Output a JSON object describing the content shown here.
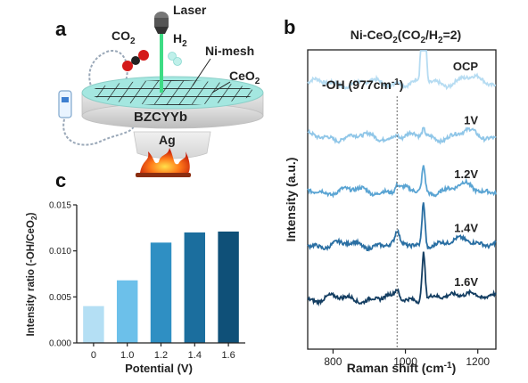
{
  "panels": {
    "a": {
      "letter": "a",
      "labels": {
        "laser": "Laser",
        "co2": "CO",
        "co2_sub": "2",
        "h2": "H",
        "h2_sub": "2",
        "ni_mesh": "Ni-mesh",
        "ceo2": "CeO",
        "ceo2_sub": "2",
        "disk": "BZCYYb",
        "ag": "Ag"
      },
      "colors": {
        "laser_beam": "#3ddc84",
        "disk_top": "#9ee7e0",
        "mesh": "#1a1a1a",
        "flame": "#e03a10"
      },
      "icons": [
        "laser-head-icon",
        "co2-molecule-icon",
        "h2-molecule-icon",
        "flame-icon",
        "wire-icon",
        "device-icon"
      ]
    },
    "b": {
      "letter": "b",
      "title": "Ni-CeO",
      "title_sub": "2",
      "title_rest": "(CO",
      "title_sub2": "2",
      "title_tail": "/H",
      "title_sub3": "2",
      "title_end": "=2)",
      "annotation": "-OH (977cm",
      "annotation_sup": "-1",
      "annotation_end": ")",
      "annotation_x": 977
    },
    "c": {
      "letter": "c"
    }
  },
  "chart_data": [
    {
      "type": "bar",
      "panel": "c",
      "categories": [
        "0",
        "1.0",
        "1.2",
        "1.4",
        "1.6"
      ],
      "values": [
        0.004,
        0.0068,
        0.0109,
        0.012,
        0.0121
      ],
      "colors": [
        "#b4dff4",
        "#6cc0ea",
        "#2f8fc3",
        "#1b6e9e",
        "#0f5078"
      ],
      "xlabel": "Potential (V)",
      "ylabel": "Intensity ratio (-OH/CeO",
      "ylabel_sub": "2",
      "ylabel_end": ")",
      "ylim": [
        0,
        0.015
      ],
      "yticks": [
        "0.000",
        "0.005",
        "0.010",
        "0.015"
      ],
      "ytick_values": [
        0,
        0.005,
        0.01,
        0.015
      ]
    },
    {
      "type": "line",
      "panel": "b",
      "title": "Ni-CeO2(CO2/H2=2)",
      "xlabel": "Raman shift (cm",
      "xlabel_sup": "-1",
      "xlabel_end": ")",
      "ylabel": "Intensity (a.u.)",
      "xlim": [
        730,
        1250
      ],
      "xticks": [
        "800",
        "1000",
        "1200"
      ],
      "xtick_values": [
        800,
        1000,
        1200
      ],
      "peak_position": 1050,
      "shoulder_position": 977,
      "series": [
        {
          "name": "OCP",
          "color": "#b6dcf2",
          "baseline": 0.8,
          "peak": 7.5,
          "shoulder": 0.15,
          "bump": 0.15
        },
        {
          "name": "1V",
          "color": "#8fc6e8",
          "baseline": 0.62,
          "peak": 0.2,
          "shoulder": 0.2,
          "bump": 0.12
        },
        {
          "name": "1.2V",
          "color": "#5aa4d3",
          "baseline": 0.44,
          "peak": 0.6,
          "shoulder": 0.28,
          "bump": 0.15
        },
        {
          "name": "1.4V",
          "color": "#2a6fa3",
          "baseline": 0.26,
          "peak": 1.1,
          "shoulder": 0.5,
          "bump": 0.18
        },
        {
          "name": "1.6V",
          "color": "#143e62",
          "baseline": 0.08,
          "peak": 1.2,
          "shoulder": 0.42,
          "bump": 0.22
        }
      ]
    }
  ]
}
